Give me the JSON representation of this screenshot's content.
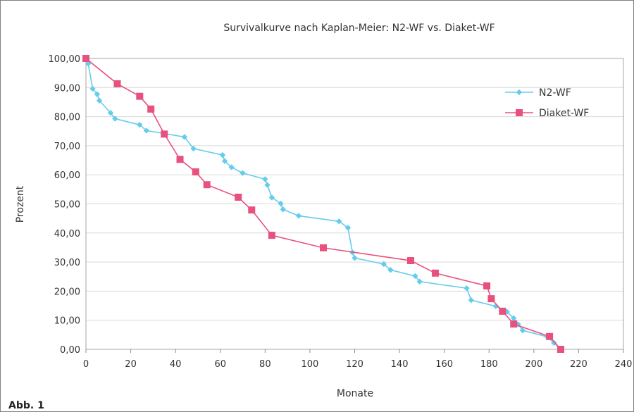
{
  "figure_label": "Abb. 1",
  "chart_data": {
    "type": "line",
    "title": "Survivalkurve nach Kaplan-Meier: N2-WF vs. Diaket-WF",
    "xlabel": "Monate",
    "ylabel": "Prozent",
    "xlim": [
      0,
      240
    ],
    "ylim": [
      0,
      100
    ],
    "x_ticks": [
      "0",
      "20",
      "40",
      "60",
      "80",
      "100",
      "120",
      "140",
      "160",
      "180",
      "200",
      "220",
      "240"
    ],
    "y_ticks": [
      "0,00",
      "10,00",
      "20,00",
      "30,00",
      "40,00",
      "50,00",
      "60,00",
      "70,00",
      "80,00",
      "90,00",
      "100,00"
    ],
    "grid": "horizontal",
    "legend_position": "right",
    "series": [
      {
        "name": "N2-WF",
        "color": "#66ccec",
        "marker": "diamond",
        "points": [
          [
            0,
            100
          ],
          [
            1,
            98.2
          ],
          [
            3,
            89.6
          ],
          [
            5,
            87.7
          ],
          [
            6,
            85.5
          ],
          [
            11,
            81.3
          ],
          [
            13,
            79.3
          ],
          [
            24,
            77.2
          ],
          [
            27,
            75.2
          ],
          [
            44,
            73
          ],
          [
            48,
            69
          ],
          [
            61,
            66.8
          ],
          [
            62,
            64.7
          ],
          [
            65,
            62.6
          ],
          [
            70,
            60.6
          ],
          [
            80,
            58.5
          ],
          [
            81,
            56.5
          ],
          [
            83,
            52.2
          ],
          [
            87,
            50.1
          ],
          [
            88,
            48.1
          ],
          [
            95,
            45.9
          ],
          [
            113,
            44
          ],
          [
            117,
            41.8
          ],
          [
            119,
            33.3
          ],
          [
            120,
            31.4
          ],
          [
            133,
            29.3
          ],
          [
            136,
            27.3
          ],
          [
            147,
            25.2
          ],
          [
            149,
            23.3
          ],
          [
            170,
            21
          ],
          [
            172,
            16.9
          ],
          [
            183,
            14.8
          ],
          [
            188,
            12.9
          ],
          [
            191,
            10.7
          ],
          [
            193,
            8.6
          ],
          [
            195,
            6.5
          ],
          [
            206,
            4.3
          ],
          [
            209,
            2.2
          ],
          [
            212,
            0
          ]
        ]
      },
      {
        "name": "Diaket-WF",
        "color": "#e8507e",
        "marker": "square",
        "points": [
          [
            0,
            100
          ],
          [
            14,
            91.3
          ],
          [
            24,
            87
          ],
          [
            29,
            82.6
          ],
          [
            35,
            74
          ],
          [
            42,
            65.3
          ],
          [
            49,
            61
          ],
          [
            54,
            56.6
          ],
          [
            68,
            52.3
          ],
          [
            74,
            47.9
          ],
          [
            83,
            39.2
          ],
          [
            106,
            34.9
          ],
          [
            145,
            30.5
          ],
          [
            156,
            26.2
          ],
          [
            179,
            21.8
          ],
          [
            181,
            17.4
          ],
          [
            186,
            13.1
          ],
          [
            191,
            8.7
          ],
          [
            207,
            4.4
          ],
          [
            212,
            0
          ]
        ]
      }
    ]
  }
}
